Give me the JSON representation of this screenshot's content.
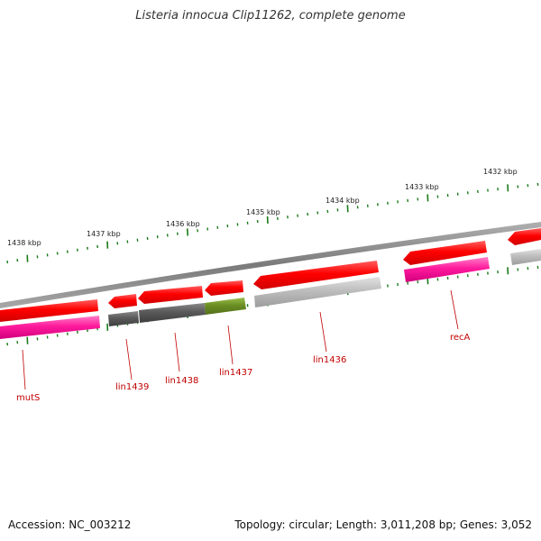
{
  "title": "Listeria innocua Clip11262, complete genome",
  "footer": {
    "accession": "Accession: NC_003212",
    "summary": "Topology: circular; Length: 3,011,208 bp; Genes: 3,052"
  },
  "ticks": [
    "1438 kbp",
    "1437 kbp",
    "1436 kbp",
    "1435 kbp",
    "1434 kbp",
    "1433 kbp",
    "1432 kbp"
  ],
  "gene_labels": [
    "mutS",
    "lin1439",
    "lin1438",
    "lin1437",
    "lin1436",
    "recA"
  ],
  "colors": {
    "backbone": "#888888",
    "tick": "#1a7a1a",
    "cds_red": "#ff0000",
    "cds_magenta": "#ff1a9c",
    "cds_grey": "#bdbdbd",
    "cds_darkgrey": "#5a5a5a",
    "cds_olive": "#6b8e23",
    "label": "#c00000"
  }
}
